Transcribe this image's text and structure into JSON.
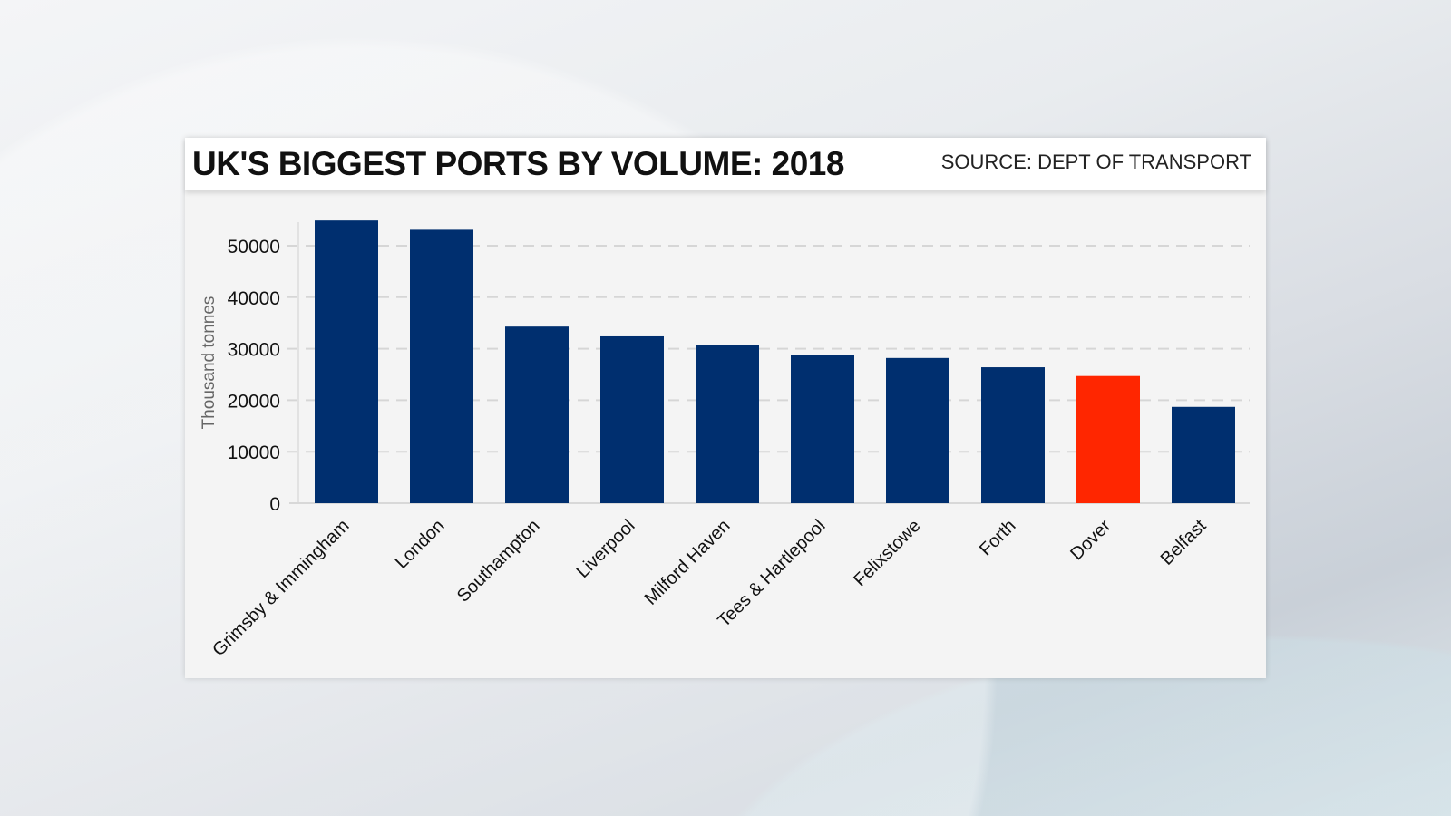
{
  "chart_data": {
    "type": "bar",
    "title": "UK'S BIGGEST PORTS BY VOLUME: 2018",
    "source": "SOURCE: DEPT OF TRANSPORT",
    "ylabel": "Thousand tonnes",
    "xlabel": "",
    "ylim": [
      0,
      55000
    ],
    "yticks": [
      0,
      10000,
      20000,
      30000,
      40000,
      50000
    ],
    "grid": true,
    "categories": [
      "Grimsby & Immingham",
      "London",
      "Southampton",
      "Liverpool",
      "Milford Haven",
      "Tees & Hartlepool",
      "Felixstowe",
      "Forth",
      "Dover",
      "Belfast"
    ],
    "values": [
      54900,
      53100,
      34300,
      32400,
      30700,
      28700,
      28200,
      26400,
      24700,
      18700
    ],
    "colors": {
      "default": "#002f6f",
      "highlight": "#ff2600"
    },
    "highlight": "Dover"
  }
}
